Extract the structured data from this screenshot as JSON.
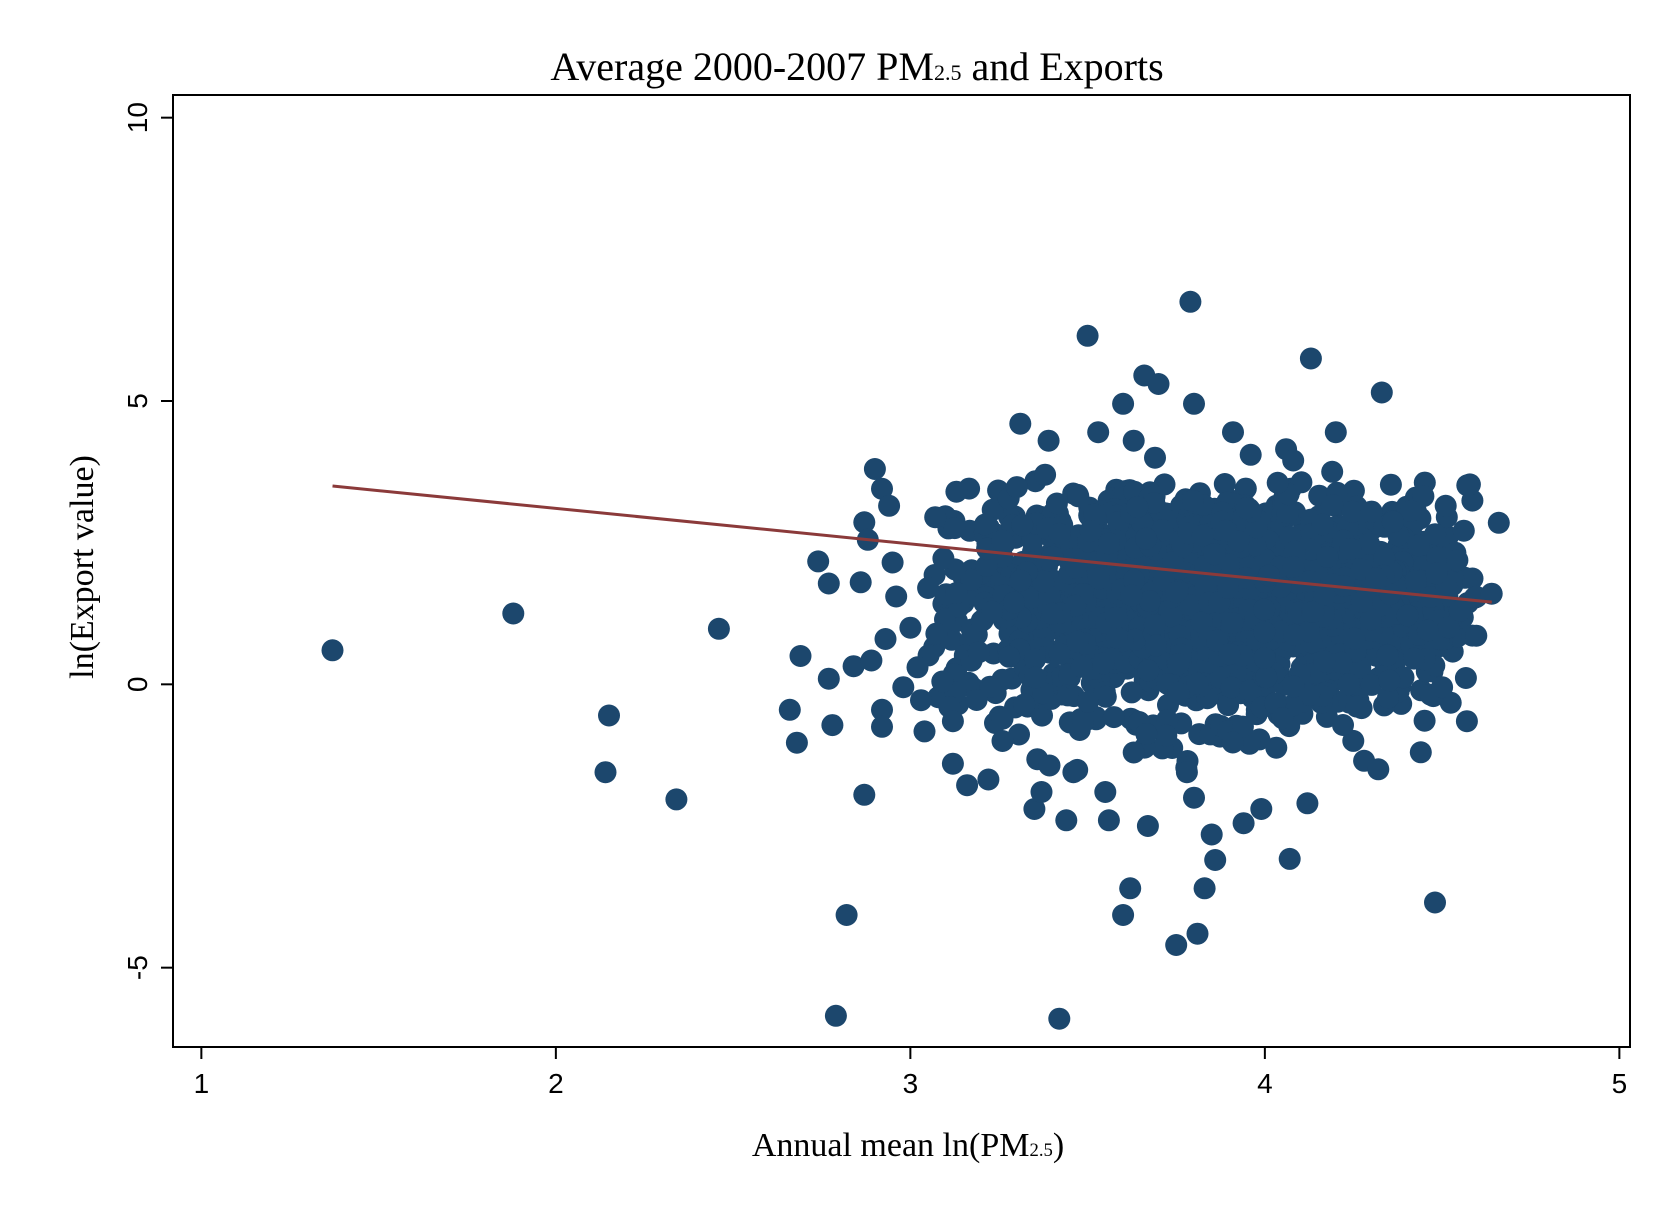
{
  "chart_data": {
    "type": "scatter",
    "title": {
      "main": "Average 2000-2007 PM",
      "sub": "2.5",
      "tail": " and Exports"
    },
    "xlabel": {
      "main": "Annual mean ln(PM",
      "sub": "2.5",
      "tail": ")"
    },
    "ylabel": "ln(Export value)",
    "xlim": [
      0.92,
      5.03
    ],
    "ylim": [
      -6.4,
      10.4
    ],
    "x_ticks": [
      1,
      2,
      3,
      4,
      5
    ],
    "x_tick_labels": [
      "1",
      "2",
      "3",
      "4",
      "5"
    ],
    "y_ticks": [
      -5,
      0,
      5,
      10
    ],
    "y_tick_labels": [
      "-5",
      "0",
      "5",
      "10"
    ],
    "grid": false,
    "legend": "none",
    "colors": {
      "points": "#1c476d",
      "fit_line": "#8b3a3a",
      "axes": "#000000"
    },
    "fit_line": {
      "x": [
        1.37,
        4.64
      ],
      "y": [
        3.5,
        1.45
      ]
    },
    "points": [
      {
        "x": 1.37,
        "y": 0.6
      },
      {
        "x": 1.88,
        "y": 1.25
      },
      {
        "x": 2.14,
        "y": -1.55
      },
      {
        "x": 2.15,
        "y": -0.55
      },
      {
        "x": 2.34,
        "y": -2.03
      },
      {
        "x": 2.46,
        "y": 0.98
      },
      {
        "x": 2.66,
        "y": -0.45
      },
      {
        "x": 2.68,
        "y": -1.03
      },
      {
        "x": 2.69,
        "y": 0.5
      },
      {
        "x": 2.74,
        "y": 2.17
      },
      {
        "x": 2.77,
        "y": 1.78
      },
      {
        "x": 2.77,
        "y": 0.1
      },
      {
        "x": 2.78,
        "y": -0.72
      },
      {
        "x": 2.79,
        "y": -5.85
      },
      {
        "x": 2.82,
        "y": -4.07
      },
      {
        "x": 2.84,
        "y": 0.32
      },
      {
        "x": 2.87,
        "y": -1.95
      },
      {
        "x": 2.86,
        "y": 1.8
      },
      {
        "x": 2.87,
        "y": 2.86
      },
      {
        "x": 2.88,
        "y": 2.55
      },
      {
        "x": 2.89,
        "y": 0.42
      },
      {
        "x": 2.9,
        "y": 3.8
      },
      {
        "x": 2.92,
        "y": 3.45
      },
      {
        "x": 2.92,
        "y": -0.45
      },
      {
        "x": 2.92,
        "y": -0.75
      },
      {
        "x": 2.93,
        "y": 0.8
      },
      {
        "x": 2.94,
        "y": 3.15
      },
      {
        "x": 2.95,
        "y": 2.15
      },
      {
        "x": 2.96,
        "y": 1.55
      },
      {
        "x": 2.98,
        "y": -0.05
      },
      {
        "x": 3.0,
        "y": 1.0
      },
      {
        "x": 3.02,
        "y": 0.3
      },
      {
        "x": 3.03,
        "y": -0.28
      },
      {
        "x": 3.04,
        "y": -0.83
      },
      {
        "x": 3.05,
        "y": 1.7
      },
      {
        "x": 3.07,
        "y": 2.95
      },
      {
        "x": 3.09,
        "y": 0.05
      },
      {
        "x": 3.11,
        "y": -0.4
      },
      {
        "x": 3.12,
        "y": -0.65
      },
      {
        "x": 3.12,
        "y": -1.4
      },
      {
        "x": 3.13,
        "y": 3.4
      },
      {
        "x": 3.16,
        "y": -1.78
      },
      {
        "x": 3.22,
        "y": -1.68
      },
      {
        "x": 3.26,
        "y": -1.0
      },
      {
        "x": 3.31,
        "y": 4.6
      },
      {
        "x": 3.35,
        "y": -2.2
      },
      {
        "x": 3.37,
        "y": -1.9
      },
      {
        "x": 3.39,
        "y": 4.3
      },
      {
        "x": 3.38,
        "y": 3.7
      },
      {
        "x": 3.42,
        "y": -5.9
      },
      {
        "x": 3.44,
        "y": -2.4
      },
      {
        "x": 3.46,
        "y": -1.55
      },
      {
        "x": 3.5,
        "y": 6.15
      },
      {
        "x": 3.53,
        "y": 4.45
      },
      {
        "x": 3.55,
        "y": -1.9
      },
      {
        "x": 3.56,
        "y": -2.4
      },
      {
        "x": 3.6,
        "y": -4.07
      },
      {
        "x": 3.6,
        "y": 4.95
      },
      {
        "x": 3.62,
        "y": -3.6
      },
      {
        "x": 3.63,
        "y": 4.3
      },
      {
        "x": 3.66,
        "y": 5.45
      },
      {
        "x": 3.67,
        "y": -2.5
      },
      {
        "x": 3.7,
        "y": 5.3
      },
      {
        "x": 3.69,
        "y": 4.0
      },
      {
        "x": 3.75,
        "y": -4.6
      },
      {
        "x": 3.78,
        "y": -1.55
      },
      {
        "x": 3.79,
        "y": 6.75
      },
      {
        "x": 3.8,
        "y": 4.95
      },
      {
        "x": 3.8,
        "y": -2.0
      },
      {
        "x": 3.81,
        "y": -4.4
      },
      {
        "x": 3.83,
        "y": -3.6
      },
      {
        "x": 3.85,
        "y": -2.65
      },
      {
        "x": 3.86,
        "y": -3.1
      },
      {
        "x": 3.91,
        "y": 4.45
      },
      {
        "x": 3.94,
        "y": -2.45
      },
      {
        "x": 3.96,
        "y": 4.05
      },
      {
        "x": 3.99,
        "y": -2.2
      },
      {
        "x": 4.06,
        "y": 4.15
      },
      {
        "x": 4.07,
        "y": -3.08
      },
      {
        "x": 4.08,
        "y": 3.95
      },
      {
        "x": 4.12,
        "y": -2.1
      },
      {
        "x": 4.13,
        "y": 5.75
      },
      {
        "x": 4.19,
        "y": 3.75
      },
      {
        "x": 4.2,
        "y": 4.45
      },
      {
        "x": 4.28,
        "y": -1.35
      },
      {
        "x": 4.32,
        "y": -1.5
      },
      {
        "x": 4.33,
        "y": 5.15
      },
      {
        "x": 4.48,
        "y": -3.85
      },
      {
        "x": 4.5,
        "y": -0.05
      },
      {
        "x": 4.51,
        "y": 3.15
      },
      {
        "x": 4.57,
        "y": -0.65
      },
      {
        "x": 4.64,
        "y": 1.6
      },
      {
        "x": 4.66,
        "y": 2.85
      },
      {
        "x": 4.44,
        "y": -1.2
      },
      {
        "x": 4.46,
        "y": 0.95
      },
      {
        "x": 4.55,
        "y": 1.3
      }
    ],
    "dense_cluster": {
      "x_center": 3.85,
      "x_spread": 0.36,
      "y_center": 1.5,
      "y_spread": 1.0,
      "count": 2200
    }
  }
}
